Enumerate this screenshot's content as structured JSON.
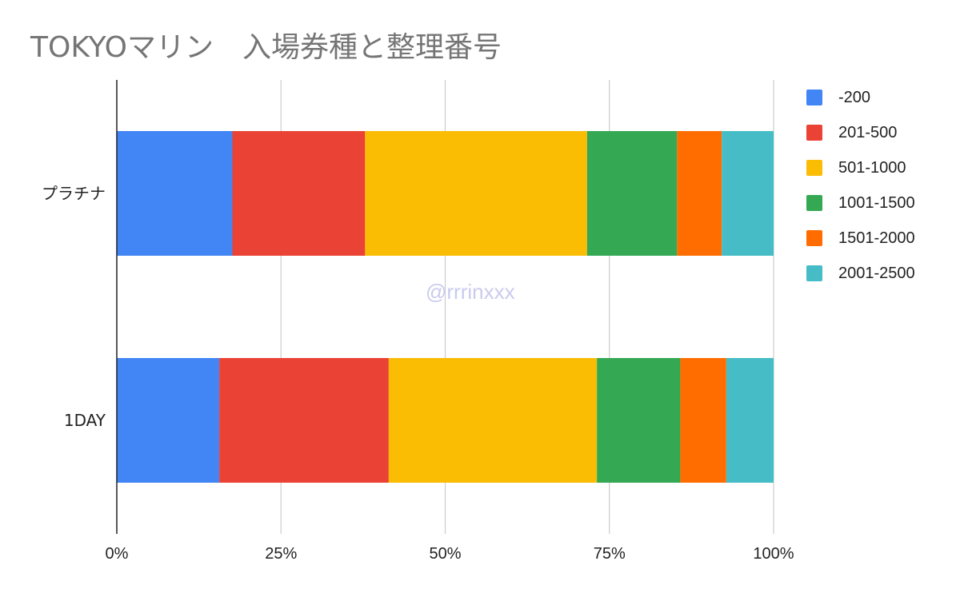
{
  "chart_data": {
    "type": "bar",
    "orientation": "horizontal",
    "stacking": "percent",
    "title": "TOKYOマリン　入場券種と整理番号",
    "categories": [
      "プラチナ",
      "1DAY"
    ],
    "series": [
      {
        "name": "-200",
        "color": "#4285f4",
        "values": [
          17.6,
          15.6
        ]
      },
      {
        "name": "201-500",
        "color": "#ea4335",
        "values": [
          20.2,
          25.8
        ]
      },
      {
        "name": "501-1000",
        "color": "#fbbc04",
        "values": [
          33.8,
          31.7
        ]
      },
      {
        "name": "1001-1500",
        "color": "#34a853",
        "values": [
          13.7,
          12.7
        ]
      },
      {
        "name": "1501-2000",
        "color": "#ff6d01",
        "values": [
          6.8,
          7.0
        ]
      },
      {
        "name": "2001-2500",
        "color": "#46bdc6",
        "values": [
          7.9,
          7.2
        ]
      }
    ],
    "xlim": [
      0,
      100
    ],
    "xticks": [
      "0%",
      "25%",
      "50%",
      "75%",
      "100%"
    ],
    "grid": true,
    "legend_position": "right"
  },
  "watermark": "@rrrinxxx"
}
